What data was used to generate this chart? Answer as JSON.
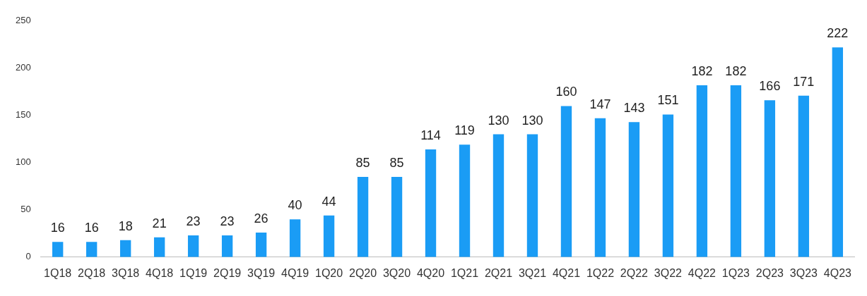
{
  "chart_data": {
    "type": "bar",
    "categories": [
      "1Q18",
      "2Q18",
      "3Q18",
      "4Q18",
      "1Q19",
      "2Q19",
      "3Q19",
      "4Q19",
      "1Q20",
      "2Q20",
      "3Q20",
      "4Q20",
      "1Q21",
      "2Q21",
      "3Q21",
      "4Q21",
      "1Q22",
      "2Q22",
      "3Q22",
      "4Q22",
      "1Q23",
      "2Q23",
      "3Q23",
      "4Q23"
    ],
    "values": [
      16,
      16,
      18,
      21,
      23,
      23,
      26,
      40,
      44,
      85,
      85,
      114,
      119,
      130,
      130,
      160,
      147,
      143,
      151,
      182,
      182,
      166,
      171,
      222
    ],
    "color": "#1a9cf5",
    "ylim": [
      0,
      250
    ],
    "yticks": [
      0,
      50,
      100,
      150,
      200,
      250
    ],
    "grid": false,
    "legend": false,
    "data_labels": true
  }
}
